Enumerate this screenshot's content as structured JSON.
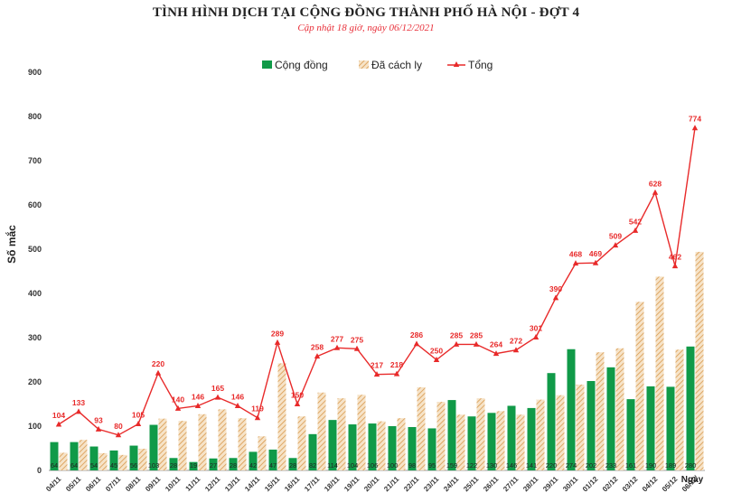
{
  "title": "TÌNH HÌNH DỊCH TẠI CỘNG ĐỒNG THÀNH PHỐ HÀ NỘI - ĐỢT 4",
  "subtitle": "Cập nhật 18 giờ, ngày 06/12/2021",
  "colors": {
    "community": "#109a48",
    "isolated_fill": "#f6e3c8",
    "isolated_stripe": "#d99a4e",
    "total": "#e82a2a",
    "axis_text": "#333333",
    "grid": "#d9d9d9"
  },
  "chart_data": {
    "type": "bar",
    "title": "TÌNH HÌNH DỊCH TẠI CỘNG ĐỒNG THÀNH PHỐ HÀ NỘI - ĐỢT 4",
    "subtitle": "Cập nhật 18 giờ, ngày 06/12/2021",
    "xlabel": "Ngày",
    "ylabel": "Số mắc",
    "ylim": [
      0,
      900
    ],
    "yticks": [
      0,
      100,
      200,
      300,
      400,
      500,
      600,
      700,
      800,
      900
    ],
    "legend_position": "top-center",
    "grid": false,
    "categories": [
      "04/11",
      "05/11",
      "06/11",
      "07/11",
      "08/11",
      "09/11",
      "10/11",
      "11/11",
      "12/11",
      "13/11",
      "14/11",
      "15/11",
      "16/11",
      "17/11",
      "18/11",
      "19/11",
      "20/11",
      "21/11",
      "22/11",
      "23/11",
      "24/11",
      "25/11",
      "26/11",
      "27/11",
      "28/11",
      "29/11",
      "30/11",
      "01/12",
      "02/12",
      "03/12",
      "04/12",
      "05/12",
      "06/12"
    ],
    "series": [
      {
        "name": "Cộng đồng",
        "type": "bar",
        "values": [
          64,
          64,
          54,
          45,
          56,
          103,
          28,
          19,
          27,
          28,
          42,
          47,
          28,
          82,
          114,
          104,
          106,
          100,
          98,
          95,
          159,
          122,
          130,
          146,
          141,
          220,
          274,
          202,
          233,
          161,
          190,
          189,
          280
        ]
      },
      {
        "name": "Đã cách ly",
        "type": "bar",
        "values": [
          40,
          69,
          39,
          35,
          49,
          117,
          112,
          127,
          138,
          118,
          77,
          242,
          122,
          176,
          163,
          171,
          111,
          118,
          188,
          155,
          126,
          163,
          134,
          126,
          160,
          170,
          194,
          267,
          276,
          381,
          438,
          273,
          494
        ]
      },
      {
        "name": "Tổng",
        "type": "line",
        "values": [
          104,
          133,
          93,
          80,
          105,
          220,
          140,
          146,
          165,
          146,
          119,
          289,
          150,
          258,
          277,
          275,
          217,
          218,
          286,
          250,
          285,
          285,
          264,
          272,
          301,
          390,
          468,
          469,
          509,
          542,
          628,
          462,
          774
        ]
      }
    ]
  }
}
